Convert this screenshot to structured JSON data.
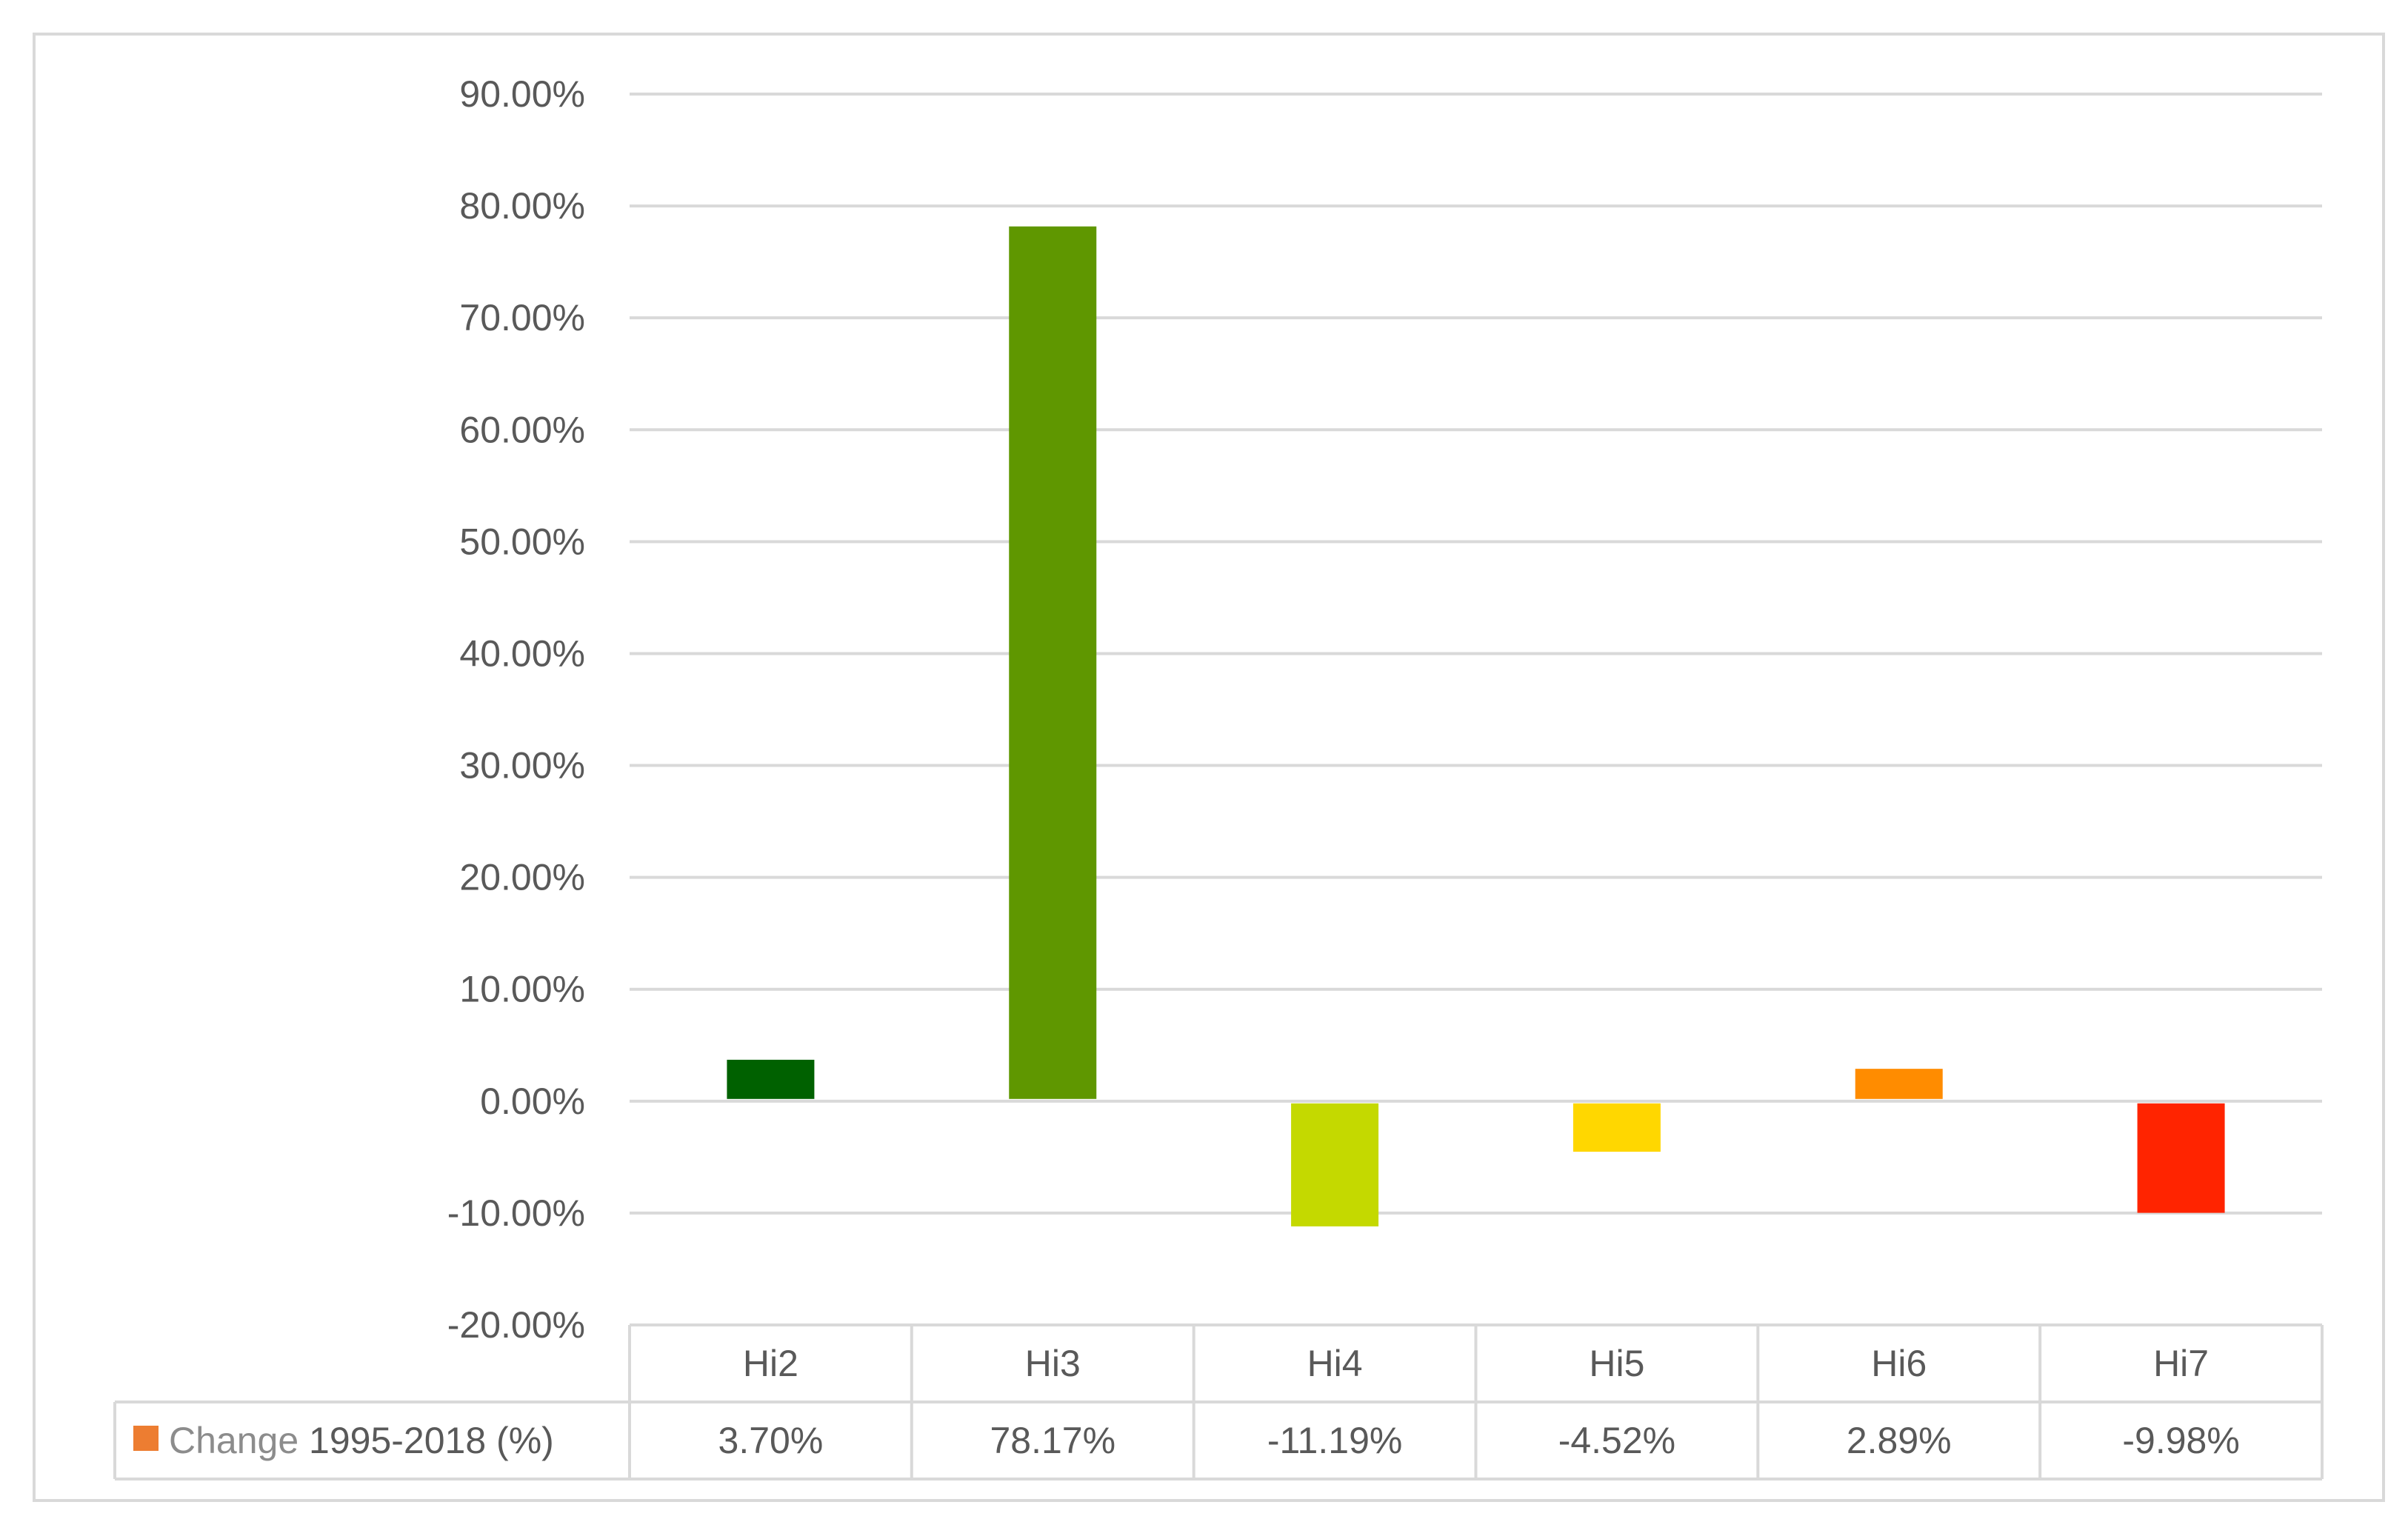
{
  "chart_data": {
    "type": "bar",
    "categories": [
      "Hi2",
      "Hi3",
      "Hi4",
      "Hi5",
      "Hi6",
      "Hi7"
    ],
    "series": [
      {
        "name": "Change 1995-2018 (%)",
        "legend_prefix": "Change",
        "legend_suffix": "1995-2018 (%)",
        "values": [
          3.7,
          78.17,
          -11.19,
          -4.52,
          2.89,
          -9.98
        ],
        "value_labels": [
          "3.70%",
          "78.17%",
          "-11.19%",
          "-4.52%",
          "2.89%",
          "-9.98%"
        ],
        "legend_color": "#ED7D31",
        "bar_colors": [
          "#006100",
          "#5F9700",
          "#C4D900",
          "#FFD700",
          "#FF8C00",
          "#FF2400"
        ]
      }
    ],
    "ylim": [
      -20,
      90
    ],
    "y_ticks": [
      90,
      80,
      70,
      60,
      50,
      40,
      30,
      20,
      10,
      0,
      -10,
      -20
    ],
    "y_tick_labels": [
      "90.00%",
      "80.00%",
      "70.00%",
      "60.00%",
      "50.00%",
      "40.00%",
      "30.00%",
      "20.00%",
      "10.00%",
      "0.00%",
      "-10.00%",
      "-20.00%"
    ],
    "grid": true,
    "legend": "data-table",
    "title": "",
    "xlabel": "",
    "ylabel": ""
  },
  "colors": {
    "gridline": "#d9d9d9",
    "text": "#595959",
    "frame": "#d9d9d9"
  }
}
